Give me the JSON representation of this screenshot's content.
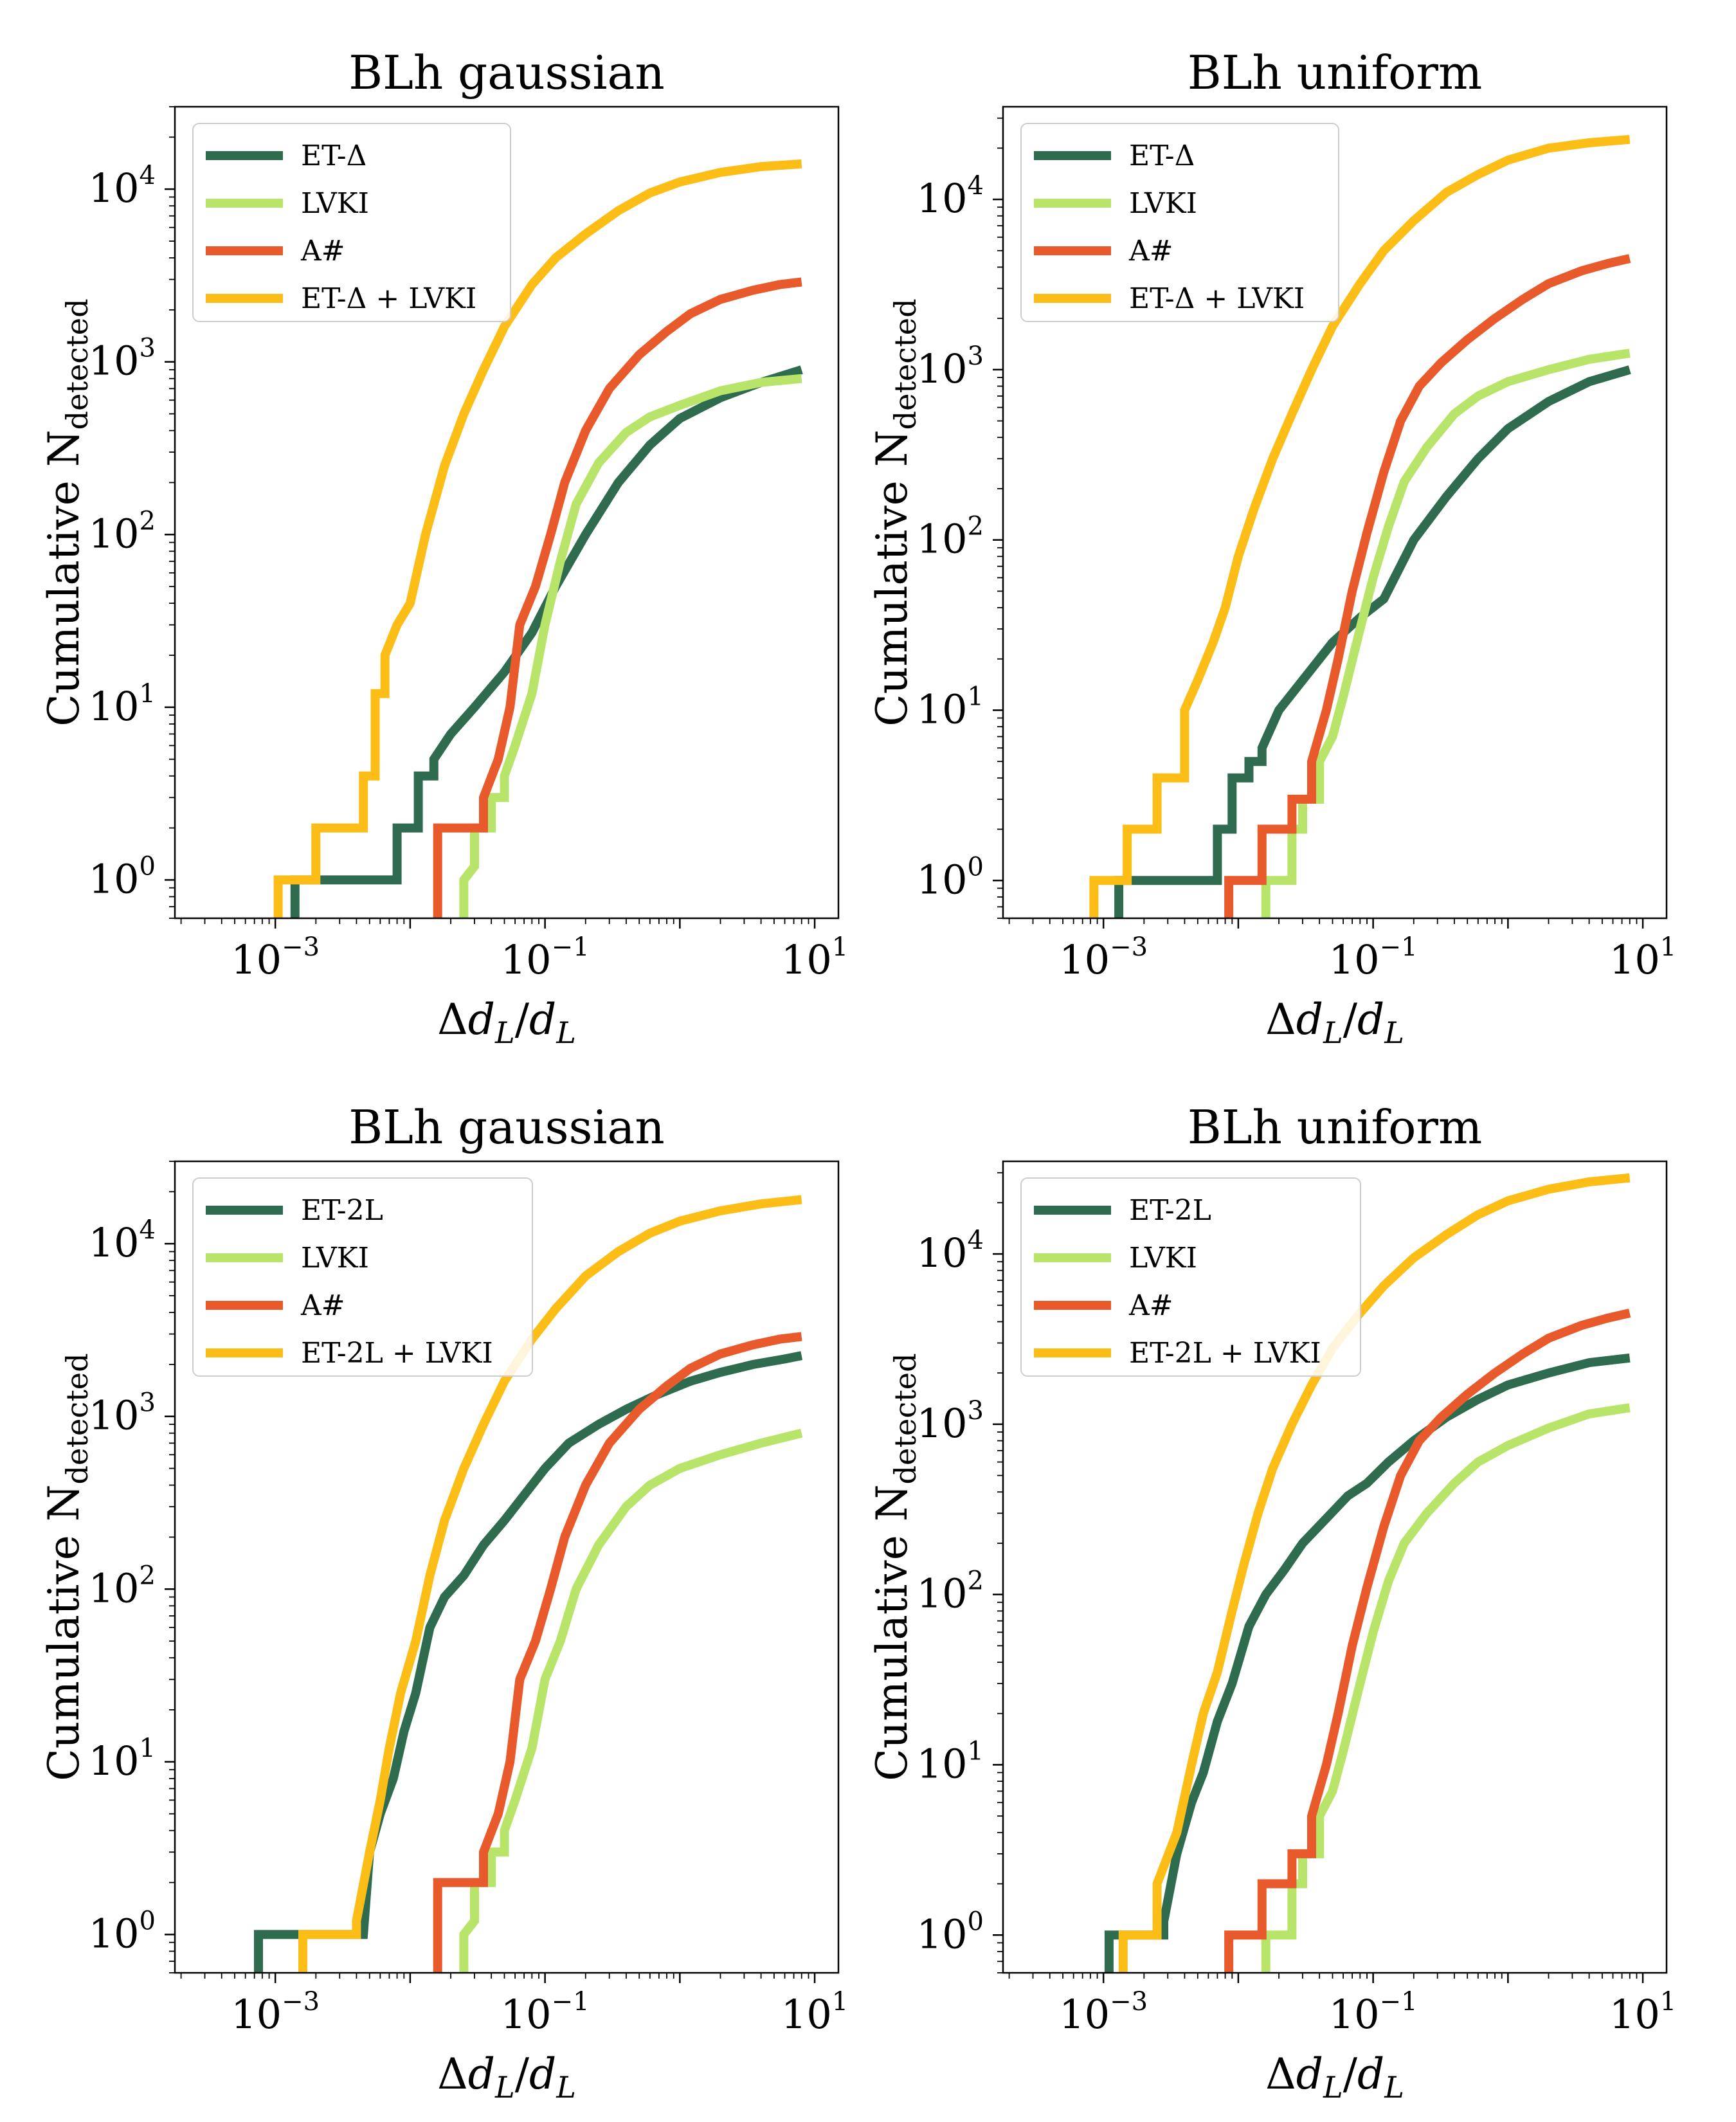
{
  "chart_data": [
    {
      "type": "line",
      "title": "BLh gaussian",
      "xlabel": "Δd_L/d_L",
      "ylabel": "Cumulative N_detected",
      "xscale": "log",
      "yscale": "log",
      "xlim": [
        0.00018,
        15
      ],
      "ylim": [
        0.6,
        30000
      ],
      "xticks": [
        "10^-3",
        "10^-1",
        "10^1"
      ],
      "yticks": [
        "10^0",
        "10^1",
        "10^2",
        "10^3",
        "10^4"
      ],
      "legend": "top-left",
      "series": [
        {
          "name": "ET-Δ",
          "color": "#2e6b4f",
          "x": [
            0.0014,
            0.0014,
            0.008,
            0.008,
            0.0115,
            0.0115,
            0.015,
            0.015,
            0.02,
            0.03,
            0.05,
            0.08,
            0.12,
            0.2,
            0.35,
            0.6,
            1.0,
            2.0,
            4.0,
            8.0
          ],
          "y": [
            0.6,
            1,
            1,
            2,
            2,
            4,
            4,
            5,
            7,
            10,
            16,
            27,
            50,
            100,
            200,
            330,
            470,
            620,
            760,
            900
          ]
        },
        {
          "name": "LVKI",
          "color": "#b8e46a",
          "x": [
            0.025,
            0.025,
            0.03,
            0.03,
            0.04,
            0.04,
            0.05,
            0.05,
            0.06,
            0.08,
            0.1,
            0.13,
            0.17,
            0.25,
            0.4,
            0.6,
            1.0,
            2.0,
            4.0,
            8.0
          ],
          "y": [
            0.6,
            1,
            1.2,
            2,
            2,
            3,
            3,
            4,
            6,
            12,
            30,
            70,
            150,
            260,
            390,
            480,
            560,
            680,
            760,
            800
          ]
        },
        {
          "name": "A#",
          "color": "#e85a2c",
          "x": [
            0.016,
            0.016,
            0.035,
            0.035,
            0.045,
            0.055,
            0.065,
            0.085,
            0.11,
            0.14,
            0.2,
            0.3,
            0.5,
            0.8,
            1.2,
            2.0,
            3.5,
            5.5,
            8.0
          ],
          "y": [
            0.6,
            2,
            2,
            3,
            5,
            10,
            30,
            50,
            100,
            200,
            400,
            700,
            1100,
            1500,
            1900,
            2300,
            2600,
            2800,
            2900
          ]
        },
        {
          "name": "ET-Δ + LVKI",
          "color": "#fbbd16",
          "x": [
            0.00105,
            0.00105,
            0.002,
            0.002,
            0.0045,
            0.0045,
            0.0055,
            0.0055,
            0.0065,
            0.0065,
            0.008,
            0.01,
            0.013,
            0.018,
            0.025,
            0.035,
            0.05,
            0.08,
            0.12,
            0.2,
            0.35,
            0.6,
            1.0,
            2.0,
            4.0,
            8.0
          ],
          "y": [
            0.6,
            1,
            1,
            2,
            2,
            4,
            4,
            12,
            12,
            20,
            30,
            40,
            100,
            250,
            500,
            900,
            1600,
            2800,
            4000,
            5500,
            7500,
            9500,
            11000,
            12500,
            13500,
            14000
          ]
        }
      ]
    },
    {
      "type": "line",
      "title": "BLh uniform",
      "xlabel": "Δd_L/d_L",
      "ylabel": "Cumulative N_detected",
      "xscale": "log",
      "yscale": "log",
      "xlim": [
        0.00018,
        15
      ],
      "ylim": [
        0.6,
        35000
      ],
      "xticks": [
        "10^-3",
        "10^-1",
        "10^1"
      ],
      "yticks": [
        "10^0",
        "10^1",
        "10^2",
        "10^3",
        "10^4"
      ],
      "legend": "top-left",
      "series": [
        {
          "name": "ET-Δ",
          "color": "#2e6b4f",
          "x": [
            0.0013,
            0.0013,
            0.007,
            0.007,
            0.009,
            0.009,
            0.012,
            0.012,
            0.015,
            0.015,
            0.02,
            0.03,
            0.05,
            0.08,
            0.12,
            0.2,
            0.35,
            0.6,
            1.0,
            2.0,
            4.0,
            8.0
          ],
          "y": [
            0.6,
            1,
            1,
            2,
            2,
            4,
            4,
            5,
            5,
            6,
            10,
            15,
            25,
            35,
            45,
            100,
            180,
            300,
            450,
            650,
            850,
            1000
          ]
        },
        {
          "name": "LVKI",
          "color": "#b8e46a",
          "x": [
            0.016,
            0.016,
            0.025,
            0.025,
            0.03,
            0.03,
            0.04,
            0.04,
            0.05,
            0.06,
            0.08,
            0.1,
            0.13,
            0.17,
            0.25,
            0.4,
            0.6,
            1.0,
            2.0,
            4.0,
            8.0
          ],
          "y": [
            0.6,
            1,
            1,
            2,
            2,
            3,
            3,
            5,
            7,
            12,
            30,
            60,
            120,
            220,
            350,
            550,
            700,
            850,
            1000,
            1150,
            1250
          ]
        },
        {
          "name": "A#",
          "color": "#e85a2c",
          "x": [
            0.0085,
            0.0085,
            0.015,
            0.015,
            0.025,
            0.025,
            0.035,
            0.035,
            0.045,
            0.055,
            0.07,
            0.09,
            0.12,
            0.16,
            0.22,
            0.32,
            0.5,
            0.8,
            1.3,
            2.0,
            3.5,
            5.5,
            8.0
          ],
          "y": [
            0.6,
            1,
            1,
            2,
            2,
            3,
            3,
            5,
            10,
            20,
            50,
            110,
            250,
            500,
            800,
            1100,
            1500,
            2000,
            2600,
            3200,
            3800,
            4200,
            4500
          ]
        },
        {
          "name": "ET-Δ + LVKI",
          "color": "#fbbd16",
          "x": [
            0.00085,
            0.00085,
            0.0015,
            0.0015,
            0.0025,
            0.0025,
            0.004,
            0.004,
            0.005,
            0.0065,
            0.008,
            0.01,
            0.013,
            0.018,
            0.025,
            0.035,
            0.05,
            0.08,
            0.12,
            0.2,
            0.35,
            0.6,
            1.0,
            2.0,
            4.0,
            8.0
          ],
          "y": [
            0.6,
            1,
            1,
            2,
            2,
            4,
            4,
            10,
            15,
            25,
            40,
            80,
            150,
            300,
            550,
            1000,
            1800,
            3200,
            5000,
            7500,
            11000,
            14000,
            17000,
            20000,
            21500,
            22500
          ]
        }
      ]
    },
    {
      "type": "line",
      "title": "BLh gaussian",
      "xlabel": "Δd_L/d_L",
      "ylabel": "Cumulative N_detected",
      "xscale": "log",
      "yscale": "log",
      "xlim": [
        0.00018,
        15
      ],
      "ylim": [
        0.6,
        30000
      ],
      "xticks": [
        "10^-3",
        "10^-1",
        "10^1"
      ],
      "yticks": [
        "10^0",
        "10^1",
        "10^2",
        "10^3",
        "10^4"
      ],
      "legend": "top-left",
      "series": [
        {
          "name": "ET-2L",
          "color": "#2e6b4f",
          "x": [
            0.00075,
            0.00075,
            0.0045,
            0.0045,
            0.005,
            0.006,
            0.0075,
            0.009,
            0.011,
            0.014,
            0.018,
            0.025,
            0.035,
            0.05,
            0.07,
            0.1,
            0.15,
            0.25,
            0.4,
            0.7,
            1.2,
            2.0,
            3.5,
            6.0,
            8.0
          ],
          "y": [
            0.6,
            1,
            1,
            1,
            3,
            5,
            8,
            15,
            25,
            60,
            90,
            120,
            180,
            250,
            350,
            500,
            700,
            900,
            1100,
            1350,
            1600,
            1800,
            2000,
            2150,
            2250
          ]
        },
        {
          "name": "LVKI",
          "color": "#b8e46a",
          "x": [
            0.025,
            0.025,
            0.03,
            0.03,
            0.04,
            0.04,
            0.05,
            0.05,
            0.06,
            0.08,
            0.1,
            0.13,
            0.17,
            0.25,
            0.4,
            0.6,
            1.0,
            2.0,
            4.0,
            8.0
          ],
          "y": [
            0.6,
            1,
            1.2,
            2,
            2,
            3,
            3,
            4,
            6,
            12,
            30,
            50,
            100,
            180,
            300,
            400,
            500,
            600,
            700,
            800
          ]
        },
        {
          "name": "A#",
          "color": "#e85a2c",
          "x": [
            0.016,
            0.016,
            0.035,
            0.035,
            0.045,
            0.055,
            0.065,
            0.085,
            0.11,
            0.14,
            0.2,
            0.3,
            0.5,
            0.8,
            1.2,
            2.0,
            3.5,
            5.5,
            8.0
          ],
          "y": [
            0.6,
            2,
            2,
            3,
            5,
            10,
            30,
            50,
            100,
            200,
            400,
            700,
            1100,
            1500,
            1900,
            2300,
            2600,
            2800,
            2900
          ]
        },
        {
          "name": "ET-2L + LVKI",
          "color": "#fbbd16",
          "x": [
            0.0016,
            0.0016,
            0.004,
            0.004,
            0.005,
            0.006,
            0.007,
            0.0085,
            0.011,
            0.014,
            0.018,
            0.025,
            0.035,
            0.05,
            0.08,
            0.12,
            0.2,
            0.35,
            0.6,
            1.0,
            2.0,
            4.0,
            8.0
          ],
          "y": [
            0.6,
            1,
            1,
            1.2,
            3,
            6,
            12,
            25,
            50,
            120,
            250,
            500,
            900,
            1600,
            2800,
            4200,
            6500,
            9000,
            11500,
            13500,
            15500,
            17000,
            18000
          ]
        }
      ]
    },
    {
      "type": "line",
      "title": "BLh uniform",
      "xlabel": "Δd_L/d_L",
      "ylabel": "Cumulative N_detected",
      "xscale": "log",
      "yscale": "log",
      "xlim": [
        0.00018,
        15
      ],
      "ylim": [
        0.6,
        35000
      ],
      "xticks": [
        "10^-3",
        "10^-1",
        "10^1"
      ],
      "yticks": [
        "10^0",
        "10^1",
        "10^2",
        "10^3",
        "10^4"
      ],
      "legend": "top-left",
      "series": [
        {
          "name": "ET-2L",
          "color": "#2e6b4f",
          "x": [
            0.0011,
            0.0011,
            0.0028,
            0.0028,
            0.0035,
            0.0045,
            0.0055,
            0.007,
            0.009,
            0.012,
            0.016,
            0.022,
            0.03,
            0.045,
            0.065,
            0.09,
            0.13,
            0.2,
            0.35,
            0.6,
            1.0,
            2.0,
            4.0,
            8.0
          ],
          "y": [
            0.6,
            1,
            1,
            1.2,
            3,
            6,
            9,
            18,
            30,
            65,
            100,
            140,
            200,
            280,
            380,
            450,
            600,
            800,
            1100,
            1400,
            1700,
            2000,
            2300,
            2450
          ]
        },
        {
          "name": "LVKI",
          "color": "#b8e46a",
          "x": [
            0.016,
            0.016,
            0.025,
            0.025,
            0.03,
            0.03,
            0.04,
            0.04,
            0.05,
            0.06,
            0.08,
            0.1,
            0.13,
            0.17,
            0.25,
            0.4,
            0.6,
            1.0,
            2.0,
            4.0,
            8.0
          ],
          "y": [
            0.6,
            1,
            1,
            2,
            2,
            3,
            3,
            5,
            7,
            12,
            30,
            60,
            120,
            200,
            300,
            450,
            600,
            750,
            950,
            1150,
            1250
          ]
        },
        {
          "name": "A#",
          "color": "#e85a2c",
          "x": [
            0.0085,
            0.0085,
            0.015,
            0.015,
            0.025,
            0.025,
            0.035,
            0.035,
            0.045,
            0.055,
            0.07,
            0.09,
            0.12,
            0.16,
            0.22,
            0.32,
            0.5,
            0.8,
            1.3,
            2.0,
            3.5,
            5.5,
            8.0
          ],
          "y": [
            0.6,
            1,
            1,
            2,
            2,
            3,
            3,
            5,
            10,
            20,
            50,
            110,
            250,
            500,
            800,
            1100,
            1500,
            2000,
            2600,
            3200,
            3800,
            4200,
            4500
          ]
        },
        {
          "name": "ET-2L + LVKI",
          "color": "#fbbd16",
          "x": [
            0.0014,
            0.0014,
            0.0025,
            0.0025,
            0.0035,
            0.0045,
            0.0055,
            0.007,
            0.009,
            0.011,
            0.014,
            0.018,
            0.025,
            0.035,
            0.05,
            0.08,
            0.12,
            0.2,
            0.35,
            0.6,
            1.0,
            2.0,
            4.0,
            8.0
          ],
          "y": [
            0.6,
            1,
            1,
            2,
            4,
            10,
            20,
            35,
            80,
            150,
            300,
            550,
            1000,
            1700,
            2800,
            4500,
            6500,
            9500,
            13000,
            17000,
            20500,
            24000,
            26500,
            28000
          ]
        }
      ]
    }
  ]
}
